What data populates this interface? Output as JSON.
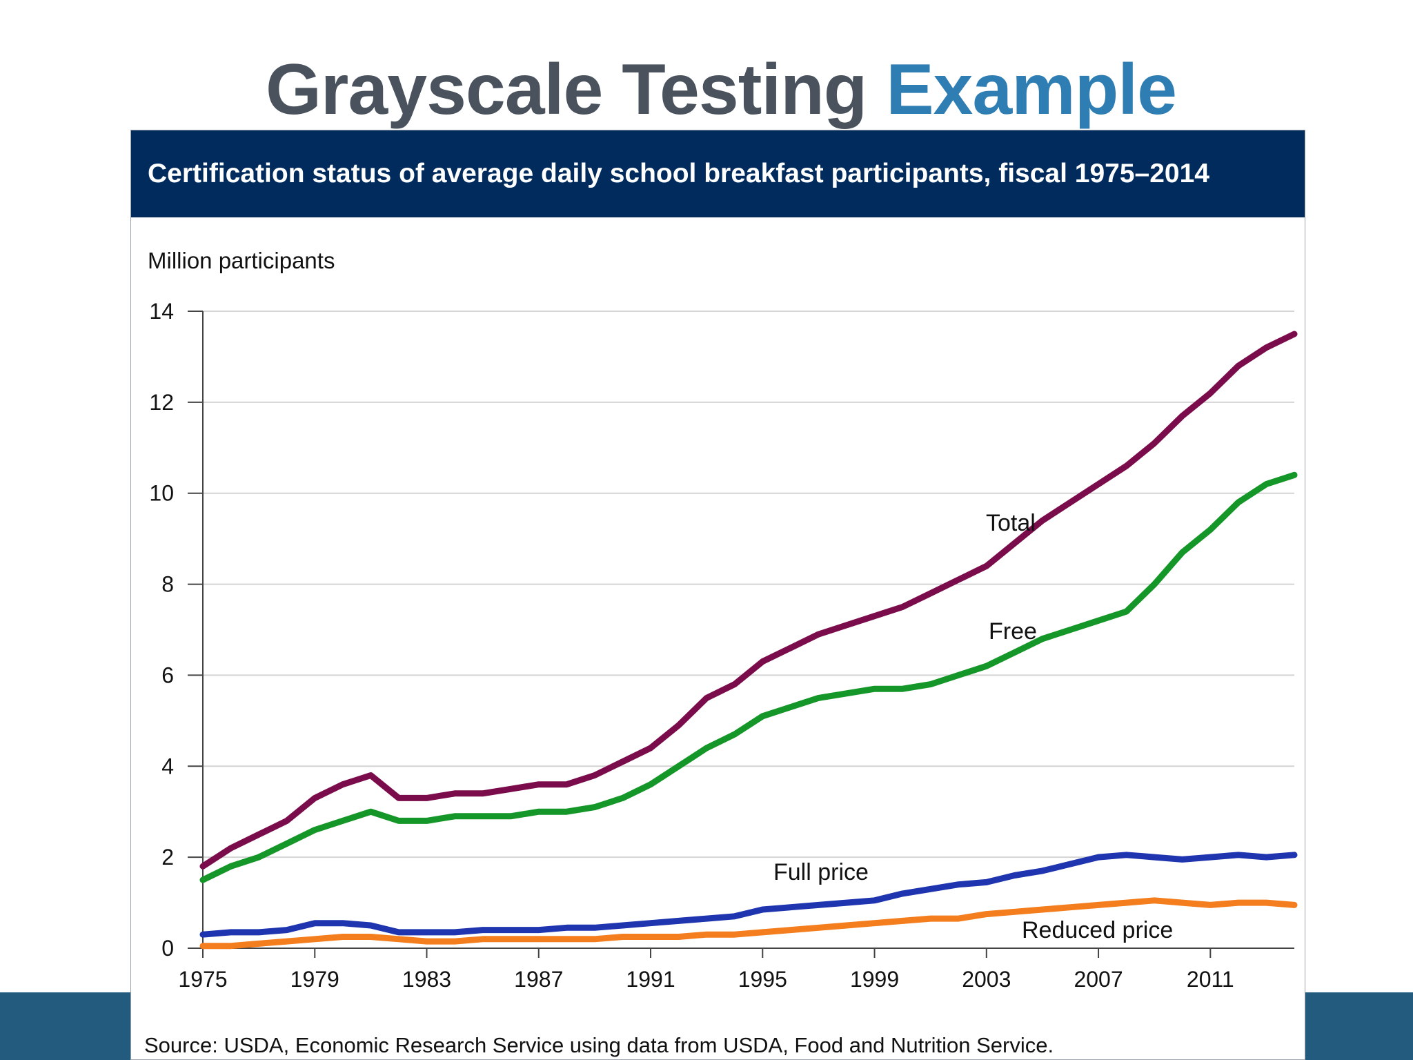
{
  "slide": {
    "title_main": "Grayscale Testing",
    "title_accent": "Example",
    "title_color": "#4a535d",
    "accent_color": "#2e7db3",
    "band_color": "#235b7e"
  },
  "chart_data": {
    "type": "line",
    "title": "Certification status of average daily school breakfast participants, fiscal 1975–2014",
    "ylabel": "Million participants",
    "xlabel": "",
    "source": "Source: USDA, Economic Research Service using data from USDA, Food and Nutrition Service.",
    "xlim": [
      1975,
      2014
    ],
    "ylim": [
      0,
      14
    ],
    "x_ticks": [
      1975,
      1979,
      1983,
      1987,
      1991,
      1995,
      1999,
      2003,
      2007,
      2011
    ],
    "x_tick_labels": [
      "1975",
      "1979",
      "1983",
      "1987",
      "1991",
      "1995",
      "1999",
      "2003",
      "2007",
      "2011"
    ],
    "y_ticks": [
      0,
      2,
      4,
      6,
      8,
      10,
      12,
      14
    ],
    "y_tick_labels": [
      "0",
      "2",
      "4",
      "6",
      "8",
      "10",
      "12",
      "14"
    ],
    "grid": true,
    "legend": "inline labels",
    "header_color": "#002b5c",
    "x": [
      1975,
      1976,
      1977,
      1978,
      1979,
      1980,
      1981,
      1982,
      1983,
      1984,
      1985,
      1986,
      1987,
      1988,
      1989,
      1990,
      1991,
      1992,
      1993,
      1994,
      1995,
      1996,
      1997,
      1998,
      1999,
      2000,
      2001,
      2002,
      2003,
      2004,
      2005,
      2006,
      2007,
      2008,
      2009,
      2010,
      2011,
      2012,
      2013,
      2014
    ],
    "series": [
      {
        "name": "Total",
        "label": "Total",
        "color": "#7b0c4c",
        "values": [
          1.8,
          2.2,
          2.5,
          2.8,
          3.3,
          3.6,
          3.8,
          3.3,
          3.3,
          3.4,
          3.4,
          3.5,
          3.6,
          3.6,
          3.8,
          4.1,
          4.4,
          4.9,
          5.5,
          5.8,
          6.3,
          6.6,
          6.9,
          7.1,
          7.3,
          7.5,
          7.8,
          8.1,
          8.4,
          8.9,
          9.4,
          9.8,
          10.2,
          10.6,
          11.1,
          11.7,
          12.2,
          12.8,
          13.2,
          13.5
        ]
      },
      {
        "name": "Free",
        "label": "Free",
        "color": "#159628",
        "values": [
          1.5,
          1.8,
          2.0,
          2.3,
          2.6,
          2.8,
          3.0,
          2.8,
          2.8,
          2.9,
          2.9,
          2.9,
          3.0,
          3.0,
          3.1,
          3.3,
          3.6,
          4.0,
          4.4,
          4.7,
          5.1,
          5.3,
          5.5,
          5.6,
          5.7,
          5.7,
          5.8,
          6.0,
          6.2,
          6.5,
          6.8,
          7.0,
          7.2,
          7.4,
          8.0,
          8.7,
          9.2,
          9.8,
          10.2,
          10.4
        ]
      },
      {
        "name": "Full price",
        "label": "Full price",
        "color": "#1f35b0",
        "values": [
          0.3,
          0.35,
          0.35,
          0.4,
          0.55,
          0.55,
          0.5,
          0.35,
          0.35,
          0.35,
          0.4,
          0.4,
          0.4,
          0.45,
          0.45,
          0.5,
          0.55,
          0.6,
          0.65,
          0.7,
          0.85,
          0.9,
          0.95,
          1.0,
          1.05,
          1.2,
          1.3,
          1.4,
          1.45,
          1.6,
          1.7,
          1.85,
          2.0,
          2.05,
          2.0,
          1.95,
          2.0,
          2.05,
          2.0,
          2.05
        ]
      },
      {
        "name": "Reduced price",
        "label": "Reduced price",
        "color": "#f47d1e",
        "values": [
          0.05,
          0.05,
          0.1,
          0.15,
          0.2,
          0.25,
          0.25,
          0.2,
          0.15,
          0.15,
          0.2,
          0.2,
          0.2,
          0.2,
          0.2,
          0.25,
          0.25,
          0.25,
          0.3,
          0.3,
          0.35,
          0.4,
          0.45,
          0.5,
          0.55,
          0.6,
          0.65,
          0.65,
          0.75,
          0.8,
          0.85,
          0.9,
          0.95,
          1.0,
          1.05,
          1.0,
          0.95,
          1.0,
          1.0,
          0.95
        ]
      }
    ]
  }
}
